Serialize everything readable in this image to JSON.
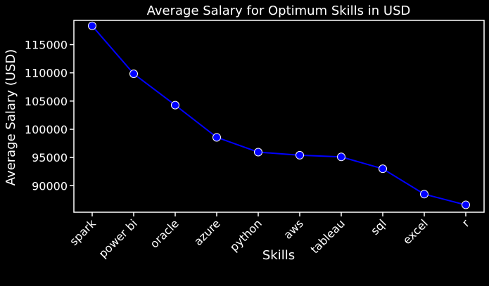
{
  "chart_data": {
    "type": "line",
    "title": "Average Salary for Optimum Skills in USD",
    "xlabel": "Skills",
    "ylabel": "Average Salary (USD)",
    "categories": [
      "spark",
      "power bi",
      "oracle",
      "azure",
      "python",
      "aws",
      "tableau",
      "sql",
      "excel",
      "r"
    ],
    "values": [
      118332,
      109833,
      104280,
      98570,
      95947,
      95400,
      95100,
      93000,
      88500,
      86600
    ],
    "ylim": [
      85300,
      119300
    ],
    "yticks": [
      90000,
      95000,
      100000,
      105000,
      110000,
      115000
    ],
    "ytick_labels": [
      "90000",
      "95000",
      "100000",
      "105000",
      "110000",
      "115000"
    ],
    "grid": false,
    "colors": {
      "background": "#000000",
      "axes": "#ffffff",
      "line": "#0000ff",
      "marker_fill": "#0000ff",
      "marker_edge": "#ffffff",
      "text": "#ffffff"
    }
  }
}
